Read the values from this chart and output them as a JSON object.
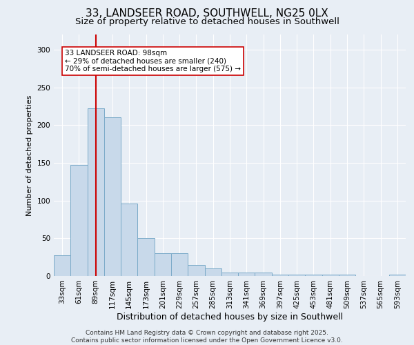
{
  "title": "33, LANDSEER ROAD, SOUTHWELL, NG25 0LX",
  "subtitle": "Size of property relative to detached houses in Southwell",
  "xlabel": "Distribution of detached houses by size in Southwell",
  "ylabel": "Number of detached properties",
  "footer": "Contains HM Land Registry data © Crown copyright and database right 2025.\nContains public sector information licensed under the Open Government Licence v3.0.",
  "categories": [
    "33sqm",
    "61sqm",
    "89sqm",
    "117sqm",
    "145sqm",
    "173sqm",
    "201sqm",
    "229sqm",
    "257sqm",
    "285sqm",
    "313sqm",
    "341sqm",
    "369sqm",
    "397sqm",
    "425sqm",
    "453sqm",
    "481sqm",
    "509sqm",
    "537sqm",
    "565sqm",
    "593sqm"
  ],
  "values": [
    27,
    147,
    222,
    210,
    96,
    50,
    30,
    30,
    15,
    10,
    5,
    5,
    5,
    2,
    2,
    2,
    2,
    2,
    0,
    0,
    2
  ],
  "bar_color": "#c8d9ea",
  "bar_edge_color": "#7aaac8",
  "vline_x": 2,
  "vline_color": "#cc0000",
  "annotation_text": "33 LANDSEER ROAD: 98sqm\n← 29% of detached houses are smaller (240)\n70% of semi-detached houses are larger (575) →",
  "annotation_box_color": "#ffffff",
  "annotation_box_edge": "#cc0000",
  "ylim": [
    0,
    320
  ],
  "yticks": [
    0,
    50,
    100,
    150,
    200,
    250,
    300
  ],
  "background_color": "#e8eef5",
  "plot_bg_color": "#e8eef5",
  "grid_color": "#ffffff",
  "title_fontsize": 11,
  "subtitle_fontsize": 9.5,
  "xlabel_fontsize": 9,
  "ylabel_fontsize": 8,
  "tick_fontsize": 7.5,
  "footer_fontsize": 6.5,
  "ann_fontsize": 7.5
}
